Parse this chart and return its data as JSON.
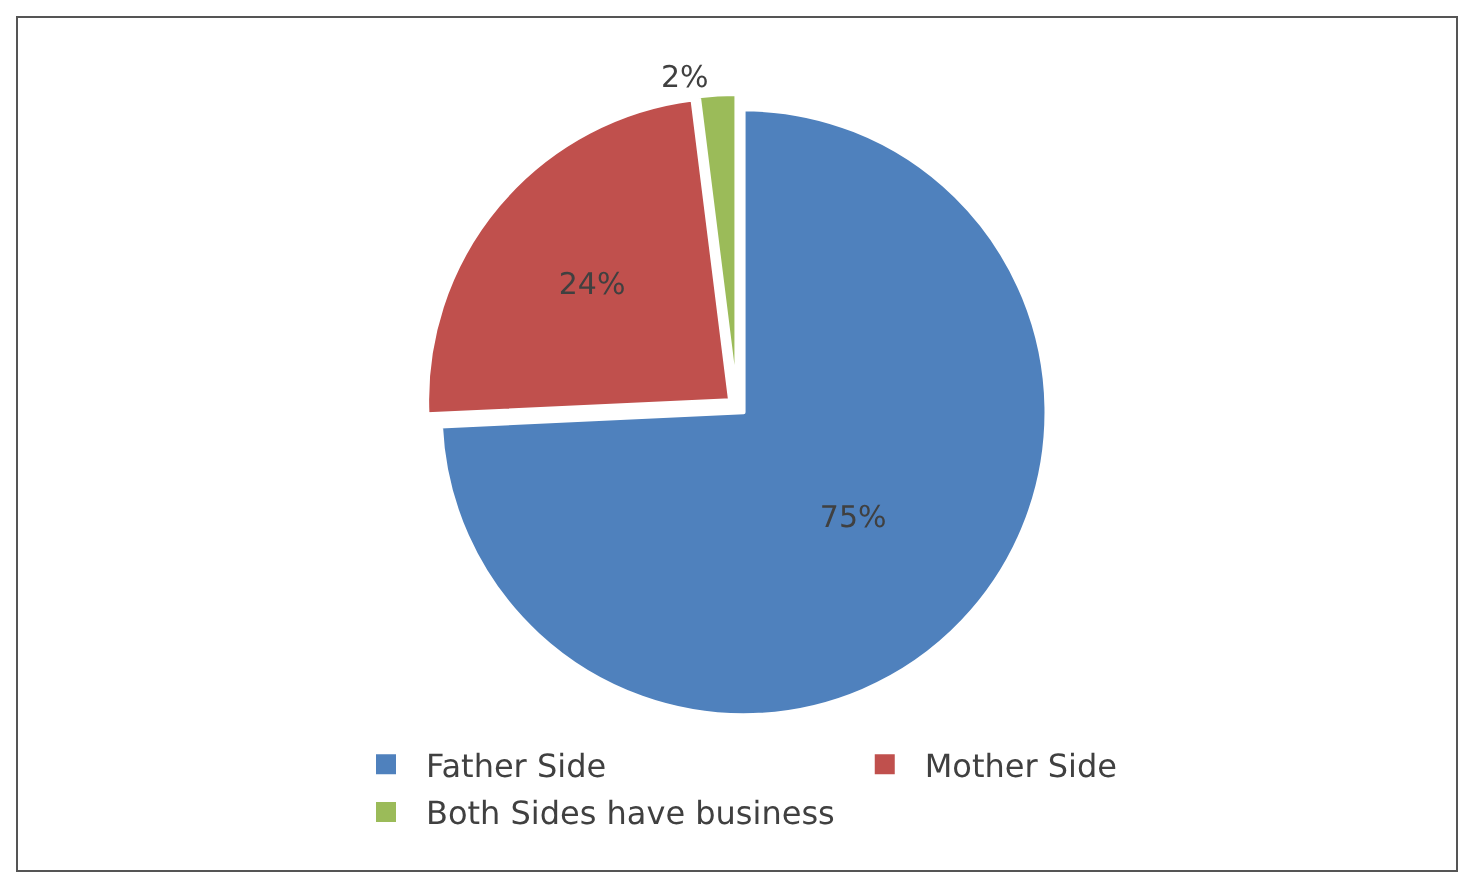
{
  "chart_data": {
    "type": "pie",
    "categories": [
      "Father Side",
      "Mother Side",
      "Both Sides have business"
    ],
    "values": [
      75,
      24,
      2
    ],
    "colors": [
      "#4f81bd",
      "#c0504d",
      "#9bbb59"
    ],
    "value_labels": [
      "75%",
      "24%",
      "2%"
    ],
    "legend": "bottom"
  }
}
